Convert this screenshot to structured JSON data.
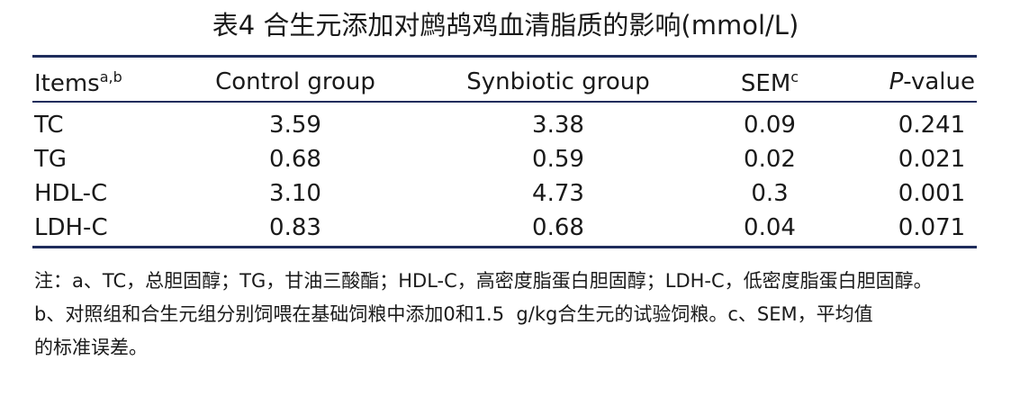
{
  "title": "表4 合生元添加对鹧鸪鸡血清脂质的影响(mmol/L)",
  "table": {
    "header": [
      {
        "text": "Items",
        "sup": "a,b"
      },
      {
        "text": "Control group"
      },
      {
        "text": "Synbiotic group"
      },
      {
        "text": "SEM",
        "sup": "c"
      },
      {
        "italic": "P",
        "text": "-value"
      }
    ],
    "rows": [
      [
        "TC",
        "3.59",
        "3.38",
        "0.09",
        "0.241"
      ],
      [
        "TG",
        "0.68",
        "0.59",
        "0.02",
        "0.021"
      ],
      [
        "HDL-C",
        "3.10",
        "4.73",
        "0.3",
        "0.001"
      ],
      [
        "LDH-C",
        "0.83",
        "0.68",
        "0.04",
        "0.071"
      ]
    ]
  },
  "notes": [
    "注：a、TC，总胆固醇；TG，甘油三酸酯；HDL-C，高密度脂蛋白胆固醇；LDH-C，低密度脂蛋白胆固醇。",
    "b、对照组和合生元组分别饲喂在基础饲粮中添加0和1.5  g/kg合生元的试验饲粮。c、SEM，平均值",
    "的标准误差。"
  ]
}
